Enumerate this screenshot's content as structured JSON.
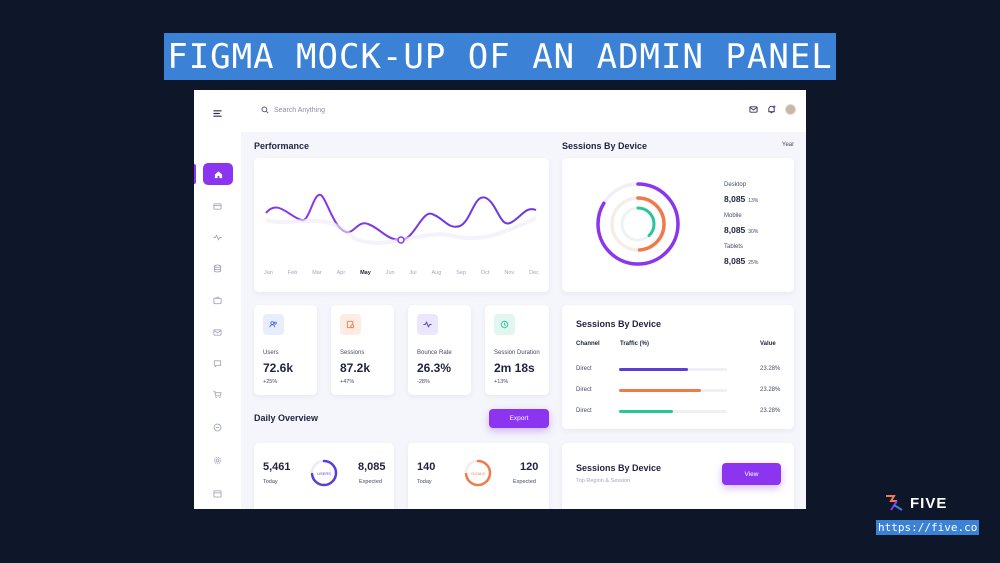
{
  "banner": {
    "title": "FIGMA MOCK-UP OF AN ADMIN PANEL"
  },
  "topbar": {
    "search_placeholder": "Search Anything"
  },
  "performance": {
    "title": "Performance",
    "months": [
      "Jan",
      "Feb",
      "Mar",
      "Apr",
      "May",
      "Jun",
      "Jul",
      "Aug",
      "Sep",
      "Oct",
      "Nov",
      "Dec"
    ],
    "active_month": "May"
  },
  "sessions_device": {
    "title": "Sessions By Device",
    "period": "Year",
    "devices": [
      {
        "label": "Desktop",
        "value": "8,085",
        "pct": "13%"
      },
      {
        "label": "Mobile",
        "value": "8,085",
        "pct": "30%"
      },
      {
        "label": "Tablets",
        "value": "8,085",
        "pct": "25%"
      }
    ]
  },
  "stats": [
    {
      "label": "Users",
      "value": "72.6k",
      "change": "+25%"
    },
    {
      "label": "Sessions",
      "value": "87.2k",
      "change": "+47%"
    },
    {
      "label": "Bounce Rate",
      "value": "26.3%",
      "change": "-28%"
    },
    {
      "label": "Session Duration",
      "value": "2m 18s",
      "change": "+13%"
    }
  ],
  "sessions_table": {
    "title": "Sessions By Device",
    "headers": {
      "channel": "Channel",
      "traffic": "Traffic (%)",
      "value": "Value"
    },
    "rows": [
      {
        "channel": "Direct",
        "value": "23.28%",
        "fill": 0.64,
        "color": "#5b3fd4"
      },
      {
        "channel": "Direct",
        "value": "23.28%",
        "fill": 0.76,
        "color": "#f07a4b"
      },
      {
        "channel": "Direct",
        "value": "23.28%",
        "fill": 0.5,
        "color": "#2cc59a"
      }
    ]
  },
  "daily": {
    "title": "Daily Overview",
    "export_label": "Export",
    "cards": [
      {
        "today": "5,461",
        "today_label": "Today",
        "expected": "8,085",
        "expected_label": "Expected",
        "ring_label": "USERS"
      },
      {
        "today": "140",
        "today_label": "Today",
        "expected": "120",
        "expected_label": "Expected",
        "ring_label": "GOALS"
      }
    ]
  },
  "region": {
    "title": "Sessions By Device",
    "subtitle": "Top Region & Session",
    "view_label": "View"
  },
  "brand": {
    "name": "FIVE",
    "url": "https://five.co"
  },
  "colors": {
    "accent": "#8b35f0",
    "banner": "#3b82d6",
    "background": "#0e1729"
  }
}
